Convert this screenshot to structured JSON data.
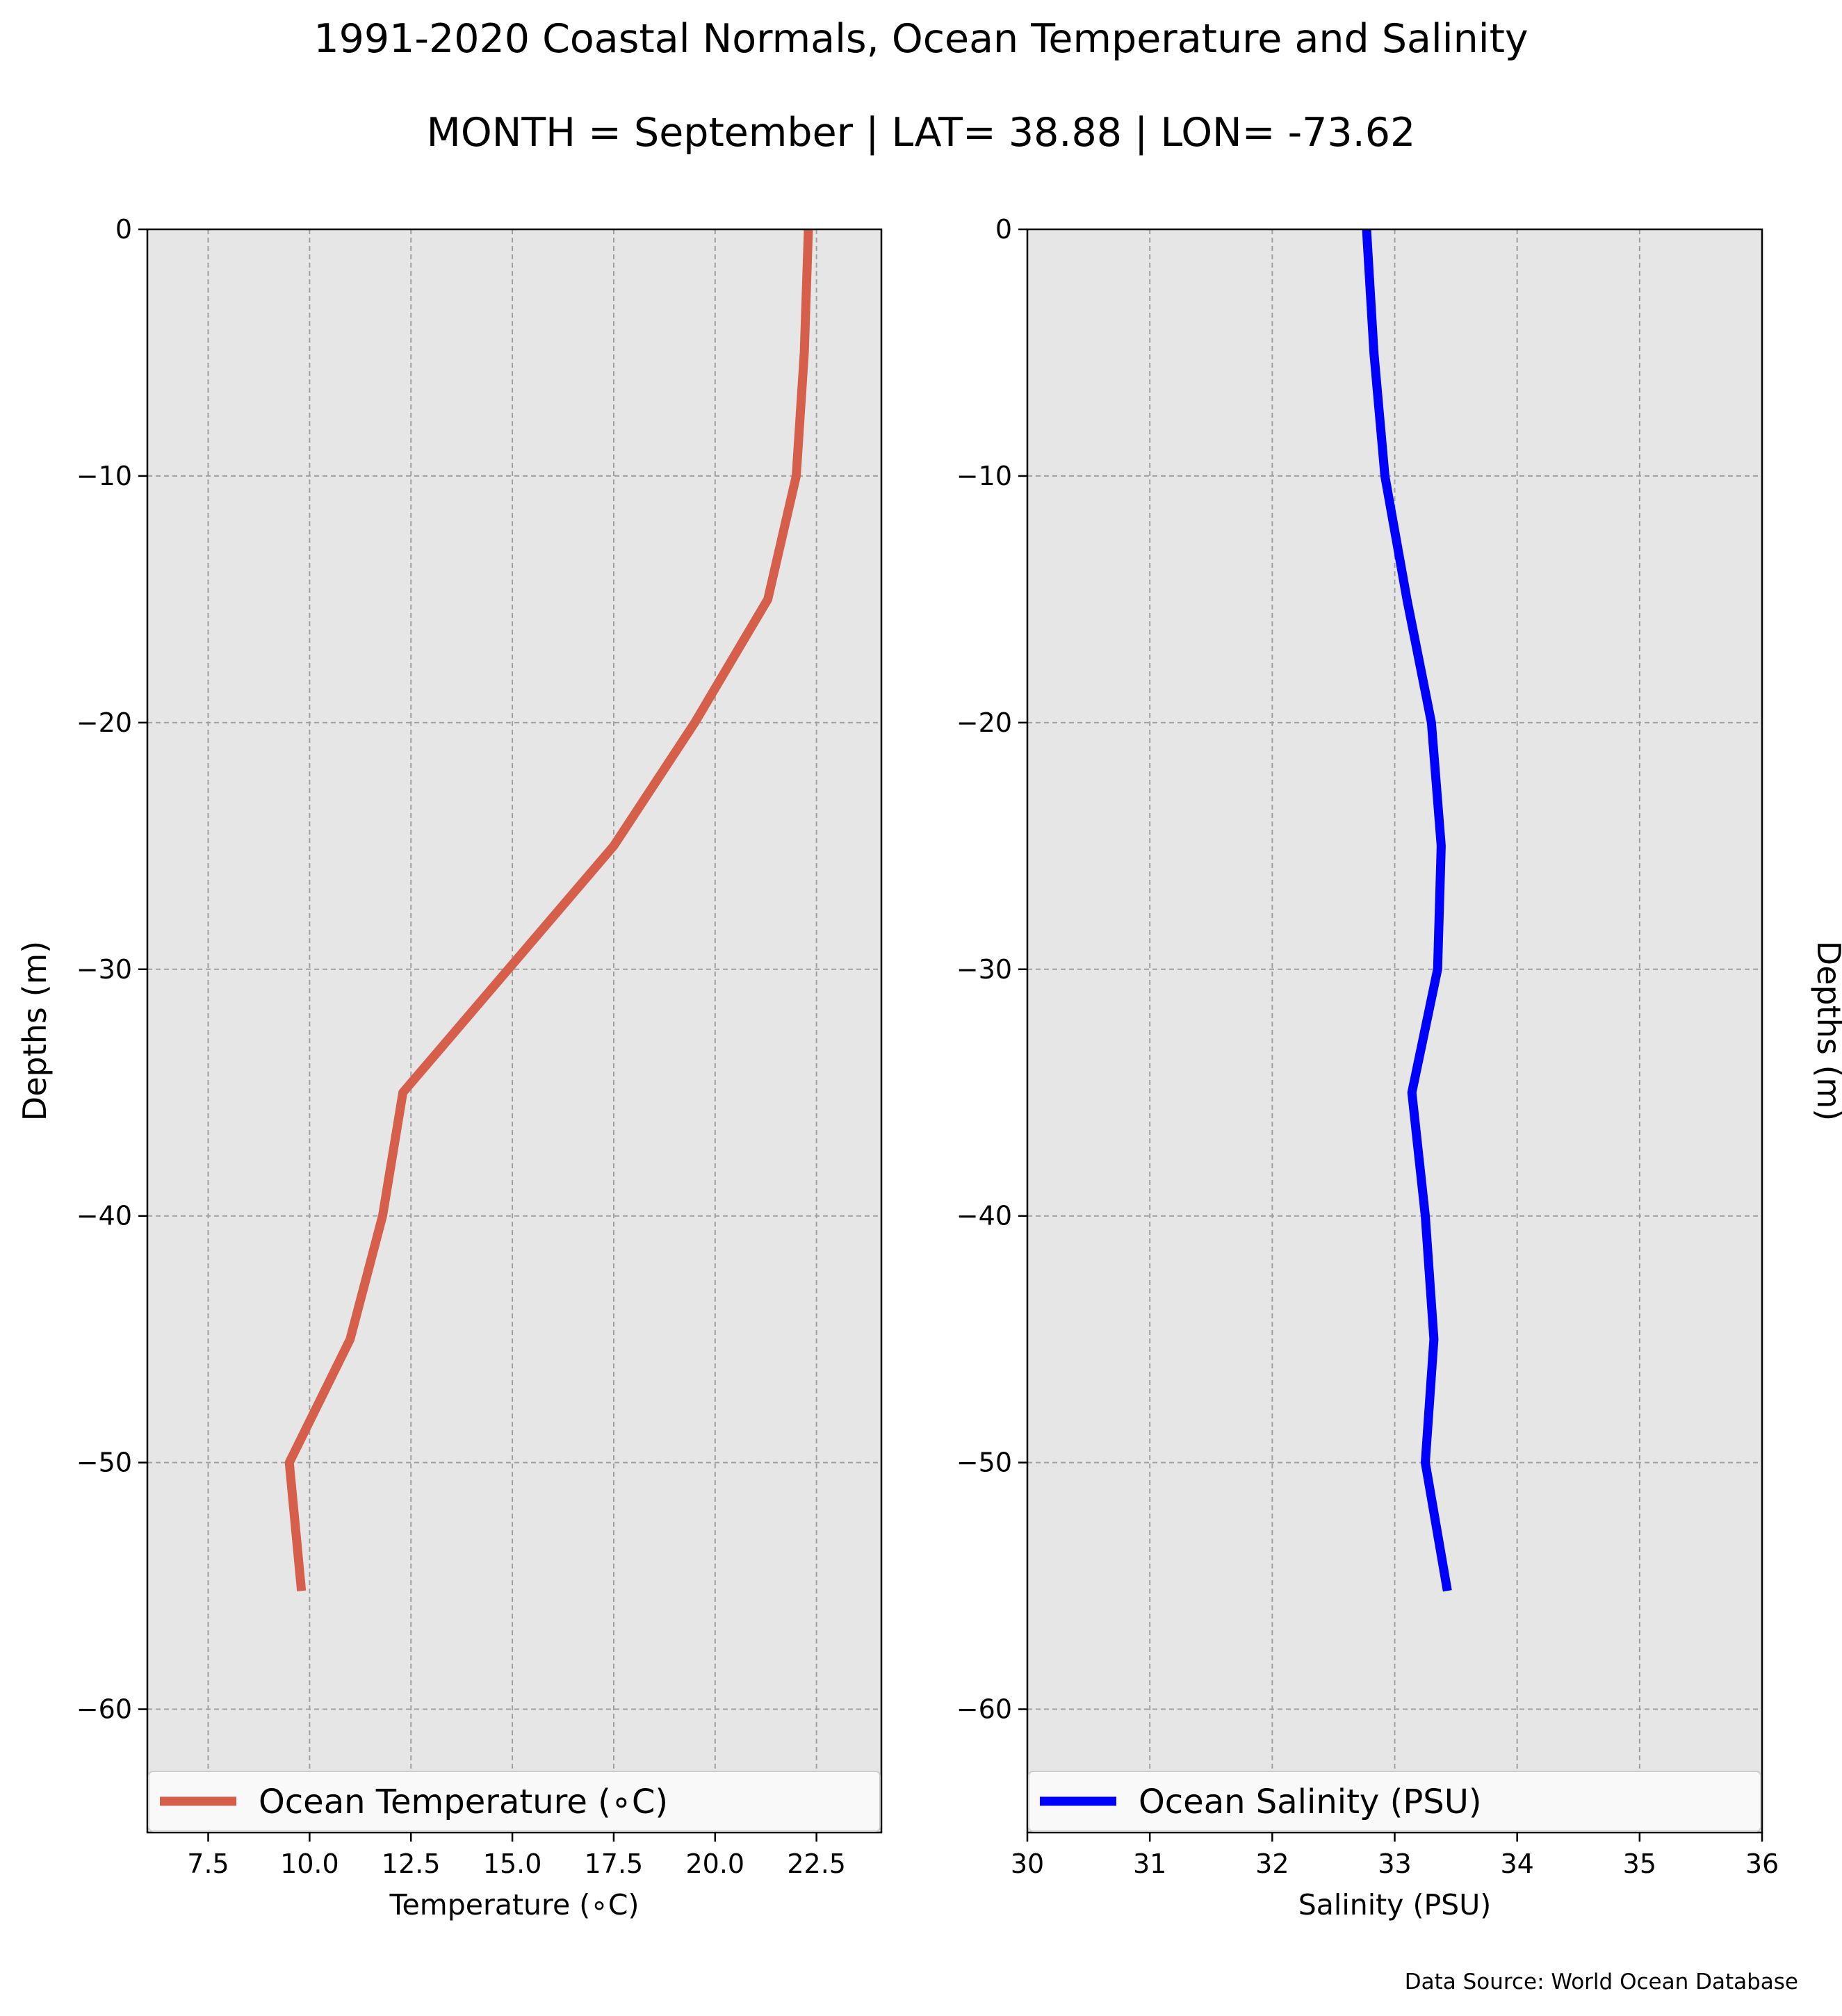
{
  "figure": {
    "title": "1991-2020 Coastal Normals, Ocean Temperature and Salinity",
    "subtitle": "MONTH = September | LAT= 38.88 | LON= -73.62",
    "source": "Data Source: World Ocean Database"
  },
  "chart_data": [
    {
      "type": "line",
      "orientation": "profile",
      "xlabel": "Temperature (∘C)",
      "ylabel": "Depths (m)",
      "ylabel_side": "left",
      "xlim": [
        6.0,
        24.1
      ],
      "ylim": [
        -65,
        0
      ],
      "xticks": [
        7.5,
        10.0,
        12.5,
        15.0,
        17.5,
        20.0,
        22.5
      ],
      "xtick_labels": [
        "7.5",
        "10.0",
        "12.5",
        "15.0",
        "17.5",
        "20.0",
        "22.5"
      ],
      "yticks": [
        0,
        -10,
        -20,
        -30,
        -40,
        -50,
        -60
      ],
      "ytick_labels": [
        "0",
        "−10",
        "−20",
        "−30",
        "−40",
        "−50",
        "−60"
      ],
      "grid": true,
      "legend_position": "bottom",
      "series": [
        {
          "name": "Ocean Temperature (∘C)",
          "color": "#d65f4c",
          "x": [
            22.3,
            22.2,
            22.0,
            21.3,
            19.5,
            17.5,
            14.9,
            12.3,
            11.8,
            11.0,
            9.5,
            9.8
          ],
          "y": [
            0,
            -5,
            -10,
            -15,
            -20,
            -25,
            -30,
            -35,
            -40,
            -45,
            -50,
            -55.2
          ]
        }
      ]
    },
    {
      "type": "line",
      "orientation": "profile",
      "xlabel": "Salinity (PSU)",
      "ylabel": "Depths (m)",
      "ylabel_side": "right",
      "xlim": [
        30,
        36
      ],
      "ylim": [
        -65,
        0
      ],
      "xticks": [
        30,
        31,
        32,
        33,
        34,
        35,
        36
      ],
      "xtick_labels": [
        "30",
        "31",
        "32",
        "33",
        "34",
        "35",
        "36"
      ],
      "yticks": [
        0,
        -10,
        -20,
        -30,
        -40,
        -50,
        -60
      ],
      "ytick_labels": [
        "0",
        "−10",
        "−20",
        "−30",
        "−40",
        "−50",
        "−60"
      ],
      "grid": true,
      "legend_position": "bottom",
      "series": [
        {
          "name": "Ocean Salinity (PSU)",
          "color": "#0000ff",
          "x": [
            32.77,
            32.83,
            32.92,
            33.1,
            33.3,
            33.38,
            33.35,
            33.14,
            33.25,
            33.32,
            33.25,
            33.43
          ],
          "y": [
            0,
            -5,
            -10,
            -15,
            -20,
            -25,
            -30,
            -35,
            -40,
            -45,
            -50,
            -55.2
          ]
        }
      ]
    }
  ]
}
